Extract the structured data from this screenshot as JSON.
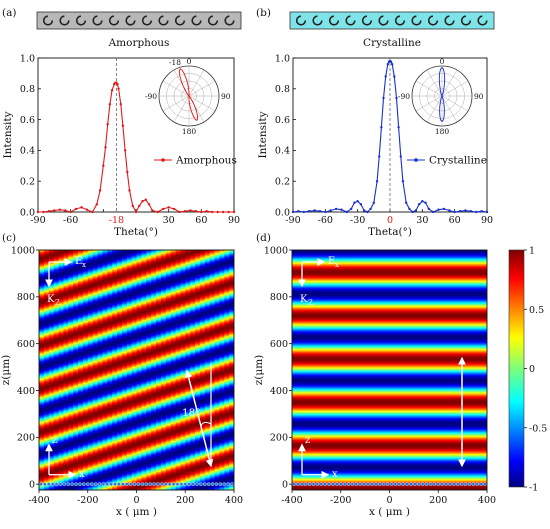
{
  "panels": {
    "a": {
      "label": "(a)",
      "strip_title": "Amorphous",
      "strip_color": "#b8b8b8",
      "series_color": "#e01a1a",
      "legend": "Amorphous",
      "inset_peak_label": "-18",
      "marker_label": "-18",
      "marker_color": "#e01a1a",
      "polar_labels": {
        "top": "0",
        "left": "-90",
        "right": "90",
        "bottom": "180"
      }
    },
    "b": {
      "label": "(b)",
      "strip_title": "Crystalline",
      "strip_color": "#7fe3ea",
      "series_color": "#1a2fd0",
      "legend": "Crystalline",
      "marker_label": "0",
      "marker_color": "#e01a1a",
      "polar_labels": {
        "top": "0",
        "left": "-90",
        "right": "90",
        "bottom": "180"
      }
    },
    "c": {
      "label": "(c)",
      "angle_label": "18°",
      "labels": {
        "ex": "E",
        "ex_sub": "x",
        "kz": "K",
        "kz_sub": "Z",
        "z": "z",
        "x": "x"
      }
    },
    "d": {
      "label": "(d)",
      "labels": {
        "ex": "E",
        "ex_sub": "x",
        "kz": "K",
        "kz_sub": "Z",
        "z": "z",
        "x": "x"
      }
    }
  },
  "chart_data": [
    {
      "type": "line",
      "panel": "a",
      "series_name": "Amorphous",
      "xlabel": "Theta(°)",
      "ylabel": "Intensity",
      "xlim": [
        -90,
        90
      ],
      "ylim": [
        0,
        1.0
      ],
      "xticks": [
        -90,
        -60,
        -30,
        0,
        30,
        60,
        90
      ],
      "xtick_labels": [
        "-90",
        "-60",
        "",
        "",
        "30",
        "60",
        "90"
      ],
      "yticks": [
        0,
        0.2,
        0.4,
        0.6,
        0.8,
        1.0
      ],
      "ytick_labels": [
        "0.0",
        "0.2",
        "0.4",
        "0.6",
        "0.8",
        "1.0"
      ],
      "peak_x": -18,
      "x": [
        -90,
        -85,
        -80,
        -75,
        -70,
        -65,
        -60,
        -55,
        -50,
        -45,
        -40,
        -36,
        -33,
        -30,
        -28,
        -26,
        -24,
        -22,
        -20,
        -19,
        -18,
        -17,
        -16,
        -14,
        -12,
        -10,
        -8,
        -6,
        -3,
        0,
        3,
        6,
        9,
        12,
        15,
        20,
        25,
        30,
        35,
        40,
        45,
        50,
        55,
        60,
        65,
        70,
        75,
        80,
        85,
        90
      ],
      "y": [
        0.0,
        0.0,
        0.005,
        0.01,
        0.015,
        0.01,
        0.0,
        0.02,
        0.03,
        0.015,
        0.0,
        0.05,
        0.14,
        0.3,
        0.42,
        0.57,
        0.7,
        0.79,
        0.83,
        0.84,
        0.84,
        0.83,
        0.8,
        0.7,
        0.56,
        0.4,
        0.26,
        0.14,
        0.04,
        0.0,
        0.04,
        0.07,
        0.08,
        0.05,
        0.01,
        0.0,
        0.02,
        0.03,
        0.02,
        0.0,
        0.005,
        0.01,
        0.005,
        0.0,
        0.005,
        0.0,
        0.0,
        0.0,
        0.0,
        0.0
      ]
    },
    {
      "type": "line",
      "panel": "b",
      "series_name": "Crystalline",
      "xlabel": "Theta(°)",
      "ylabel": "Intensity",
      "xlim": [
        -90,
        90
      ],
      "ylim": [
        0,
        1.0
      ],
      "xticks": [
        -90,
        -60,
        -30,
        0,
        30,
        60,
        90
      ],
      "xtick_labels": [
        "-90",
        "-60",
        "-30",
        "",
        "30",
        "60",
        "90"
      ],
      "yticks": [
        0,
        0.2,
        0.4,
        0.6,
        0.8,
        1.0
      ],
      "ytick_labels": [
        "0.0",
        "0.2",
        "0.4",
        "0.6",
        "0.8",
        "1.0"
      ],
      "peak_x": 0,
      "x": [
        -90,
        -85,
        -80,
        -75,
        -70,
        -65,
        -60,
        -55,
        -50,
        -45,
        -40,
        -36,
        -33,
        -30,
        -27,
        -24,
        -21,
        -18,
        -15,
        -12,
        -10,
        -8,
        -6,
        -4,
        -2,
        -1,
        0,
        1,
        2,
        4,
        6,
        8,
        10,
        12,
        15,
        18,
        21,
        24,
        27,
        30,
        33,
        36,
        40,
        45,
        50,
        55,
        60,
        65,
        70,
        75,
        80,
        85,
        90
      ],
      "y": [
        0.0,
        0.005,
        0.0,
        0.005,
        0.01,
        0.005,
        0.0,
        0.01,
        0.02,
        0.015,
        0.0,
        0.02,
        0.06,
        0.07,
        0.05,
        0.01,
        0.0,
        0.02,
        0.06,
        0.2,
        0.36,
        0.55,
        0.74,
        0.88,
        0.96,
        0.975,
        0.98,
        0.975,
        0.96,
        0.88,
        0.74,
        0.55,
        0.36,
        0.2,
        0.06,
        0.02,
        0.0,
        0.01,
        0.05,
        0.07,
        0.06,
        0.02,
        0.0,
        0.015,
        0.02,
        0.01,
        0.0,
        0.005,
        0.01,
        0.005,
        0.0,
        0.005,
        0.0
      ]
    },
    {
      "type": "polar_line",
      "panel": "a-inset",
      "theta_labels": [
        "0",
        "-90",
        "90",
        "180",
        "-18"
      ],
      "lobe_angle_deg": -18
    },
    {
      "type": "polar_line",
      "panel": "b-inset",
      "theta_labels": [
        "0",
        "-90",
        "90",
        "180"
      ],
      "lobe_angle_deg": 0
    },
    {
      "type": "heatmap",
      "panel": "c",
      "xlabel": "x ( μm )",
      "ylabel": "z(μm)",
      "xlim": [
        -400,
        400
      ],
      "ylim": [
        -25,
        1000
      ],
      "xticks": [
        -400,
        -200,
        0,
        200,
        400
      ],
      "xtick_labels": [
        "-400",
        "-200",
        "0",
        "200",
        "400"
      ],
      "yticks": [
        0,
        200,
        400,
        600,
        800,
        1000
      ],
      "ytick_labels": [
        "0",
        "200",
        "400",
        "600",
        "800",
        "1000"
      ],
      "tilt_deg": 18,
      "fringe_period_um": 185
    },
    {
      "type": "heatmap",
      "panel": "d",
      "xlabel": "x ( μm )",
      "ylabel": "z(μm)",
      "xlim": [
        -400,
        400
      ],
      "ylim": [
        -25,
        1000
      ],
      "xticks": [
        -400,
        -200,
        0,
        200,
        400
      ],
      "xtick_labels": [
        "-400",
        "-200",
        "0",
        "200",
        "400"
      ],
      "yticks": [
        0,
        200,
        400,
        600,
        800,
        1000
      ],
      "ytick_labels": [
        "0",
        "200",
        "400",
        "600",
        "800",
        "1000"
      ],
      "tilt_deg": 0,
      "fringe_period_um": 185
    },
    {
      "type": "colorbar",
      "ticks": [
        1,
        0.5,
        0,
        -0.5,
        -1
      ],
      "tick_labels": [
        "1",
        "0.5",
        "0",
        "-0.5",
        "-1"
      ],
      "range": [
        -1,
        1
      ]
    }
  ]
}
